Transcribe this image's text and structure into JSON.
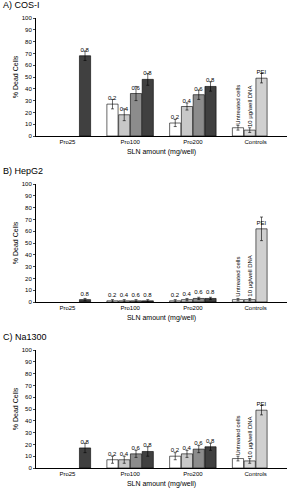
{
  "chart_data": [
    {
      "type": "bar",
      "title": "A) COS-I",
      "x_label": "SLN amount (mg/well)",
      "y_label": "% Dead Cells",
      "categories": [
        "Pro25",
        "Pro100",
        "Pro200",
        "Controls"
      ],
      "ylim": [
        0,
        100
      ],
      "yticks": [
        0,
        10,
        20,
        30,
        40,
        50,
        60,
        70,
        80,
        90,
        100
      ],
      "grid": false,
      "series": [
        {
          "name": "0.2",
          "color": "#ffffff",
          "values": [
            null,
            27,
            11,
            null
          ],
          "errors": [
            null,
            4,
            3,
            null
          ]
        },
        {
          "name": "0.4",
          "color": "#c8c8c8",
          "values": [
            null,
            18,
            25,
            null
          ],
          "errors": [
            null,
            5,
            3,
            null
          ]
        },
        {
          "name": "0.6",
          "color": "#8c8c8c",
          "values": [
            null,
            36,
            35,
            null
          ],
          "errors": [
            null,
            6,
            4,
            null
          ]
        },
        {
          "name": "0.8",
          "color": "#404040",
          "values": [
            68,
            48,
            42,
            null
          ],
          "errors": [
            4,
            5,
            4,
            null
          ]
        },
        {
          "name": "Untreated cells",
          "color": "#ffffff",
          "values": [
            null,
            null,
            null,
            7
          ],
          "errors": [
            null,
            null,
            null,
            2
          ]
        },
        {
          "name": "10 µg/well DNA",
          "color": "#d9d9d9",
          "values": [
            null,
            null,
            null,
            5
          ],
          "errors": [
            null,
            null,
            null,
            2
          ]
        },
        {
          "name": "PEI",
          "color": "#d0d0d0",
          "values": [
            null,
            null,
            null,
            49
          ],
          "errors": [
            null,
            null,
            null,
            4
          ]
        }
      ]
    },
    {
      "type": "bar",
      "title": "B) HepG2",
      "x_label": "SLN amount (mg/well)",
      "y_label": "% Dead Cells",
      "categories": [
        "Pro25",
        "Pro100",
        "Pro200",
        "Controls"
      ],
      "ylim": [
        0,
        100
      ],
      "yticks": [
        0,
        10,
        20,
        30,
        40,
        50,
        60,
        70,
        80,
        90,
        100
      ],
      "grid": false,
      "series": [
        {
          "name": "0.2",
          "color": "#ffffff",
          "values": [
            null,
            1,
            1,
            null
          ],
          "errors": [
            null,
            1,
            1,
            null
          ]
        },
        {
          "name": "0.4",
          "color": "#c8c8c8",
          "values": [
            null,
            1,
            2,
            null
          ],
          "errors": [
            null,
            1,
            1,
            null
          ]
        },
        {
          "name": "0.6",
          "color": "#8c8c8c",
          "values": [
            null,
            1,
            3,
            null
          ],
          "errors": [
            null,
            1,
            1,
            null
          ]
        },
        {
          "name": "0.8",
          "color": "#404040",
          "values": [
            2,
            1,
            3,
            null
          ],
          "errors": [
            1,
            1,
            1,
            null
          ]
        },
        {
          "name": "Untreated cells",
          "color": "#ffffff",
          "values": [
            null,
            null,
            null,
            2
          ],
          "errors": [
            null,
            null,
            null,
            1
          ]
        },
        {
          "name": "10 µg/well DNA",
          "color": "#d9d9d9",
          "values": [
            null,
            null,
            null,
            2
          ],
          "errors": [
            null,
            null,
            null,
            1
          ]
        },
        {
          "name": "PEI",
          "color": "#d0d0d0",
          "values": [
            null,
            null,
            null,
            62
          ],
          "errors": [
            null,
            null,
            null,
            10
          ]
        }
      ]
    },
    {
      "type": "bar",
      "title": "C) Na1300",
      "x_label": "SLN amount (mg/well)",
      "y_label": "% Dead Cells",
      "categories": [
        "Pro25",
        "Pro100",
        "Pro200",
        "Controls"
      ],
      "ylim": [
        0,
        100
      ],
      "yticks": [
        0,
        10,
        20,
        30,
        40,
        50,
        60,
        70,
        80,
        90,
        100
      ],
      "grid": false,
      "series": [
        {
          "name": "0.2",
          "color": "#ffffff",
          "values": [
            null,
            7,
            10,
            null
          ],
          "errors": [
            null,
            3,
            3,
            null
          ]
        },
        {
          "name": "0.4",
          "color": "#c8c8c8",
          "values": [
            null,
            7,
            12,
            null
          ],
          "errors": [
            null,
            3,
            3,
            null
          ]
        },
        {
          "name": "0.6",
          "color": "#8c8c8c",
          "values": [
            null,
            12,
            16,
            null
          ],
          "errors": [
            null,
            3,
            3,
            null
          ]
        },
        {
          "name": "0.8",
          "color": "#404040",
          "values": [
            17,
            14,
            18,
            null
          ],
          "errors": [
            4,
            4,
            3,
            null
          ]
        },
        {
          "name": "Untreated cells",
          "color": "#ffffff",
          "values": [
            null,
            null,
            null,
            8
          ],
          "errors": [
            null,
            null,
            null,
            2
          ]
        },
        {
          "name": "10 µg/well DNA",
          "color": "#d9d9d9",
          "values": [
            null,
            null,
            null,
            6
          ],
          "errors": [
            null,
            null,
            null,
            2
          ]
        },
        {
          "name": "PEI",
          "color": "#d0d0d0",
          "values": [
            null,
            null,
            null,
            49
          ],
          "errors": [
            null,
            null,
            null,
            4
          ]
        }
      ]
    }
  ]
}
